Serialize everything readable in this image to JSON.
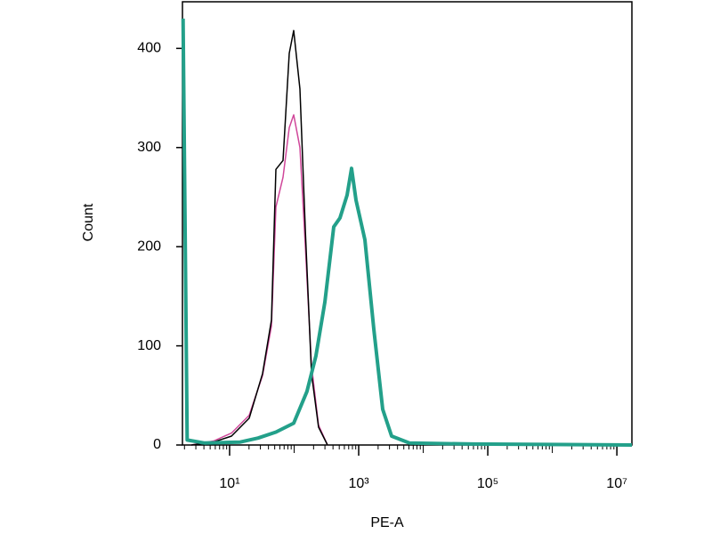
{
  "chart_data": {
    "type": "line",
    "xlabel": "PE-A",
    "ylabel": "Count",
    "xscale": "log",
    "xlim": [
      1.86,
      17100000
    ],
    "ylim": [
      0,
      447
    ],
    "xticks": [
      {
        "value": 10,
        "label": "10¹"
      },
      {
        "value": 1000,
        "label": "10³"
      },
      {
        "value": 100000,
        "label": "10⁵"
      },
      {
        "value": 10000000,
        "label": "10⁷"
      }
    ],
    "yticks": [
      0,
      100,
      200,
      300,
      400
    ],
    "minor_ticks": true,
    "series": [
      {
        "color": "#d0479a",
        "width": 1.5,
        "x": [
          2.55,
          5.65,
          10.7,
          20.1,
          32.4,
          44.5,
          52.1,
          67.2,
          84,
          98.5,
          123,
          149,
          186,
          239,
          329
        ],
        "values": [
          0,
          4,
          12,
          30,
          70,
          120,
          240,
          270,
          320,
          333,
          300,
          200,
          80,
          20,
          0
        ]
      },
      {
        "color": "#000000",
        "width": 1.5,
        "x": [
          2.55,
          5.65,
          10.7,
          20.1,
          32.4,
          44.5,
          52.1,
          67.2,
          84,
          98.5,
          123,
          149,
          186,
          239,
          329
        ],
        "values": [
          0,
          3,
          9,
          27,
          72,
          126,
          278,
          287,
          395,
          418,
          359,
          216,
          72,
          18,
          0
        ]
      },
      {
        "color": "#23a08a",
        "width": 4,
        "x": [
          1.9,
          2.2,
          4.11,
          14.6,
          27.6,
          52.1,
          98.5,
          158,
          218,
          299,
          411,
          513,
          662,
          776,
          910,
          1250,
          1716,
          2357,
          3236,
          6110,
          56500,
          17100000
        ],
        "values": [
          430,
          5,
          2,
          3,
          7,
          13,
          22,
          54,
          90,
          144,
          220,
          229,
          252,
          279,
          247,
          207,
          117,
          36,
          9,
          2,
          1,
          0
        ]
      }
    ]
  }
}
